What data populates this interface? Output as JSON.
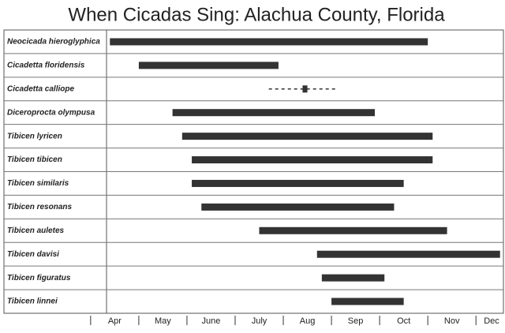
{
  "chart_data": {
    "type": "range",
    "title": "When Cicadas Sing: Alachua County, Florida",
    "categories": [
      "Neocicada hieroglyphica",
      "Cicadetta floridensis",
      "Cicadetta calliope",
      "Diceroprocta olympusa",
      "Tibicen lyricen",
      "Tibicen tibicen",
      "Tibicen similaris",
      "Tibicen resonans",
      "Tibicen auletes",
      "Tibicen davisi",
      "Tibicen figuratus",
      "Tibicen linnei"
    ],
    "starts": [
      4.4,
      5.0,
      8.4,
      5.7,
      5.9,
      6.1,
      6.1,
      6.3,
      7.5,
      8.7,
      8.8,
      9.0
    ],
    "ends": [
      11.0,
      7.9,
      8.5,
      9.9,
      11.1,
      11.1,
      10.5,
      10.3,
      11.4,
      12.5,
      10.1,
      10.5
    ],
    "dashed_starts": [
      null,
      null,
      7.7,
      null,
      null,
      null,
      null,
      null,
      null,
      null,
      null,
      null
    ],
    "dashed_ends": [
      null,
      null,
      9.1,
      null,
      null,
      null,
      null,
      null,
      null,
      null,
      null,
      null
    ],
    "color": "#333333",
    "xlim": [
      4.33,
      12.57
    ],
    "xticks": [
      {
        "value": 4.5,
        "label": "Apr"
      },
      {
        "value": 5.5,
        "label": "May"
      },
      {
        "value": 6.5,
        "label": "June"
      },
      {
        "value": 7.5,
        "label": "July"
      },
      {
        "value": 8.5,
        "label": "Aug"
      },
      {
        "value": 9.5,
        "label": "Sep"
      },
      {
        "value": 10.5,
        "label": "Oct"
      },
      {
        "value": 11.5,
        "label": "Nov"
      },
      {
        "value": 12.5,
        "label": "Dec"
      }
    ]
  }
}
